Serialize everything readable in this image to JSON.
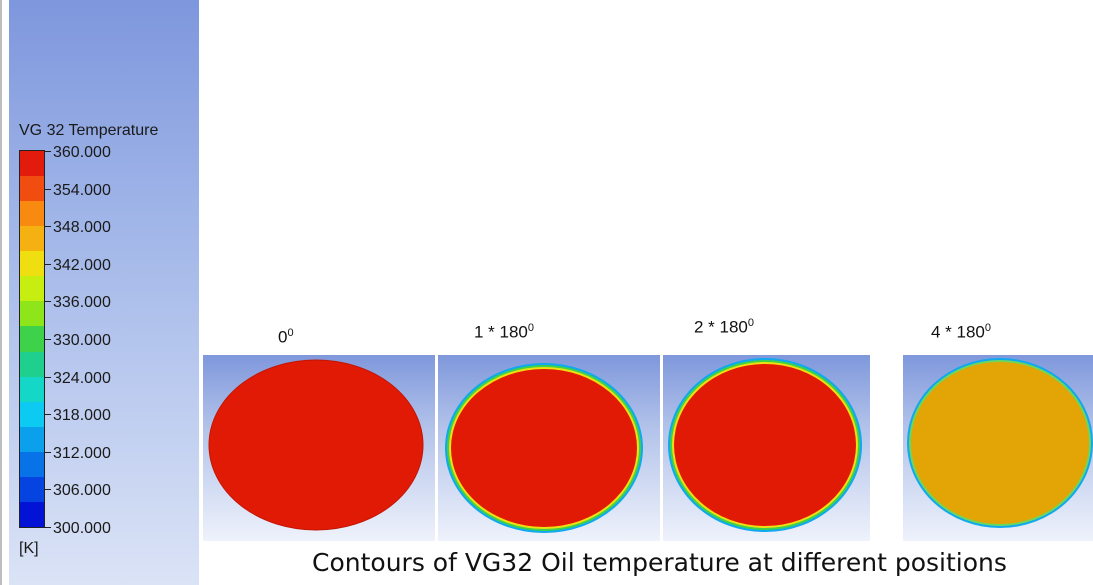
{
  "legend": {
    "title": "VG 32 Temperature",
    "units": "[K]",
    "tick_labels": [
      "360.000",
      "354.000",
      "348.000",
      "342.000",
      "336.000",
      "330.000",
      "324.000",
      "318.000",
      "312.000",
      "306.000",
      "300.000"
    ],
    "band_colors": [
      "#e21b0d",
      "#f24d10",
      "#f88a12",
      "#f5b111",
      "#f0df10",
      "#c6ef11",
      "#8ee61a",
      "#3ed14a",
      "#1fcf8d",
      "#15d7c8",
      "#0ccaf1",
      "#0ba0ec",
      "#0873e8",
      "#0544e0",
      "#0213d6"
    ]
  },
  "contour_panels": [
    {
      "label_base": "0",
      "label_exp": "0",
      "fill_color": "#e11a05",
      "rim": false
    },
    {
      "label_base": "1 * 180",
      "label_exp": "0",
      "fill_color": "#e11a05",
      "rim": true
    },
    {
      "label_base": "2 * 180",
      "label_exp": "0",
      "fill_color": "#e11a05",
      "rim": true
    },
    {
      "label_base": "4 * 180",
      "label_exp": "0",
      "fill_color": "#e3a405",
      "rim": true
    }
  ],
  "caption": "Contours of VG32 Oil temperature at different positions"
}
